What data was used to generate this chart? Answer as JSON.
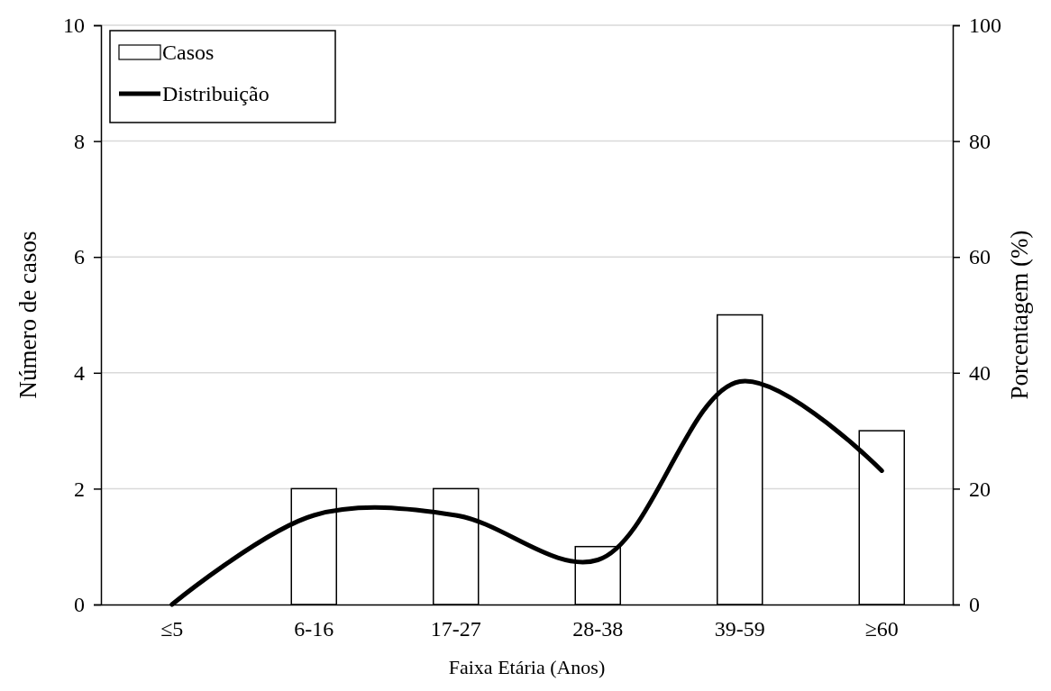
{
  "chart_data": {
    "type": "bar",
    "xlabel": "Faixa Etária (Anos)",
    "ylabel": "Número de casos",
    "y2label": "Porcentagem (%)",
    "categories": [
      "≤5",
      "6-16",
      "17-27",
      "28-38",
      "39-59",
      "≥60"
    ],
    "series": [
      {
        "name": "Casos",
        "color": "#ffffff",
        "values": [
          0,
          2,
          2,
          1,
          5,
          3
        ]
      },
      {
        "name": "Distribuição",
        "type": "line",
        "axis": "y2",
        "color": "#000000",
        "values": [
          0,
          15.4,
          15.4,
          7.7,
          38.5,
          23.1
        ]
      }
    ],
    "ylim": [
      0,
      10
    ],
    "yticks": [
      0,
      2,
      4,
      6,
      8,
      10
    ],
    "y2lim": [
      0,
      100
    ],
    "y2ticks": [
      0,
      20,
      40,
      60,
      80,
      100
    ],
    "grid": "y",
    "legend": "top left",
    "marker": "none",
    "line_style": "solid"
  }
}
